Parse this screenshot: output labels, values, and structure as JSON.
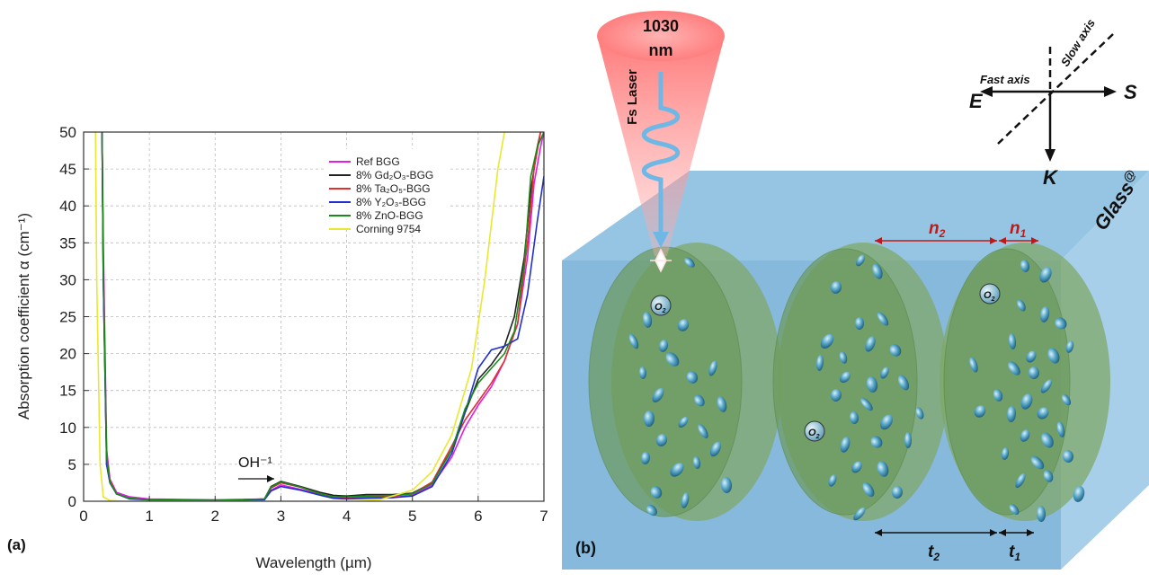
{
  "chart_data": {
    "type": "line",
    "panel_label": "(a)",
    "xlabel": "Wavelength (µm)",
    "ylabel": "Absorption coefficient α (cm⁻¹)",
    "xlim": [
      0,
      7
    ],
    "ylim": [
      0,
      50
    ],
    "xticks": [
      0,
      1,
      2,
      3,
      4,
      5,
      6,
      7
    ],
    "yticks": [
      0,
      5,
      10,
      15,
      20,
      25,
      30,
      35,
      40,
      45,
      50
    ],
    "grid": true,
    "legend_position": "top-right",
    "annotation": "OH⁻¹",
    "series": [
      {
        "name": "Ref BGG",
        "color": "#e020e0",
        "x": [
          0.28,
          0.3,
          0.35,
          0.4,
          0.5,
          0.7,
          1,
          2,
          2.75,
          2.85,
          3,
          3.3,
          3.6,
          3.8,
          4,
          4.3,
          4.7,
          5,
          5.3,
          5.6,
          5.8,
          6,
          6.2,
          6.4,
          6.6,
          6.75,
          6.85,
          6.95,
          7
        ],
        "y": [
          50,
          35,
          7,
          3,
          1.2,
          0.6,
          0.3,
          0.2,
          0.3,
          1.5,
          2.2,
          1.6,
          0.9,
          0.5,
          0.4,
          0.5,
          0.5,
          0.8,
          2.2,
          6,
          10,
          13,
          15.5,
          19,
          24,
          33,
          43,
          48,
          50
        ]
      },
      {
        "name": "8% Gd₂O₃-BGG",
        "color": "#222222",
        "x": [
          0.28,
          0.3,
          0.35,
          0.4,
          0.5,
          0.7,
          1,
          2,
          2.75,
          2.85,
          3,
          3.3,
          3.6,
          3.8,
          4,
          4.3,
          4.7,
          5,
          5.3,
          5.6,
          5.8,
          6,
          6.2,
          6.4,
          6.55,
          6.7,
          6.8,
          6.9,
          6.95
        ],
        "y": [
          50,
          30,
          5,
          2.5,
          1,
          0.4,
          0.2,
          0.1,
          0.3,
          2,
          2.7,
          2,
          1.2,
          0.8,
          0.7,
          0.9,
          0.9,
          1.1,
          2.5,
          7,
          12,
          16.5,
          18.5,
          21,
          25,
          33,
          42,
          48,
          50
        ]
      },
      {
        "name": "8% Ta₂O₅-BGG",
        "color": "#e03030",
        "x": [
          0.28,
          0.3,
          0.35,
          0.4,
          0.5,
          0.7,
          1,
          2,
          2.75,
          2.85,
          3,
          3.3,
          3.6,
          3.8,
          4,
          4.3,
          4.7,
          5,
          5.3,
          5.6,
          5.8,
          6,
          6.2,
          6.4,
          6.6,
          6.75,
          6.85,
          6.95
        ],
        "y": [
          50,
          32,
          6,
          2.8,
          1,
          0.4,
          0.2,
          0.1,
          0.3,
          1.8,
          2.5,
          1.9,
          1,
          0.6,
          0.5,
          0.6,
          0.7,
          1,
          2.6,
          7.5,
          11,
          13.5,
          16,
          19,
          24,
          35,
          45,
          50
        ]
      },
      {
        "name": "8% Y₂O₃-BGG",
        "color": "#2030d0",
        "x": [
          0.28,
          0.3,
          0.35,
          0.4,
          0.5,
          0.7,
          1,
          2,
          2.75,
          2.85,
          3,
          3.3,
          3.6,
          3.8,
          4,
          4.3,
          4.7,
          5,
          5.3,
          5.6,
          5.8,
          6,
          6.2,
          6.4,
          6.6,
          6.75,
          6.9,
          7
        ],
        "y": [
          50,
          30,
          5,
          2.5,
          1,
          0.3,
          0.2,
          0.1,
          0.2,
          1.4,
          2,
          1.5,
          0.8,
          0.4,
          0.3,
          0.4,
          0.5,
          0.7,
          2,
          6.5,
          12,
          18,
          20.5,
          21,
          22,
          28,
          38,
          44
        ]
      },
      {
        "name": "8% ZnO-BGG",
        "color": "#1a8a1a",
        "x": [
          0.28,
          0.3,
          0.35,
          0.4,
          0.5,
          0.7,
          1,
          2,
          2.75,
          2.85,
          3,
          3.3,
          3.6,
          3.8,
          4,
          4.3,
          4.7,
          5,
          5.3,
          5.6,
          5.8,
          6,
          6.2,
          6.4,
          6.55,
          6.7,
          6.8,
          6.9,
          7
        ],
        "y": [
          50,
          31,
          6,
          2.6,
          1,
          0.4,
          0.2,
          0.1,
          0.3,
          1.9,
          2.6,
          1.9,
          1,
          0.6,
          0.6,
          0.7,
          0.8,
          1,
          2.4,
          7,
          12.5,
          16,
          18,
          20,
          23,
          32,
          44,
          48,
          50
        ]
      },
      {
        "name": "Corning 9754",
        "color": "#e8e830",
        "x": [
          0.18,
          0.2,
          0.25,
          0.3,
          0.4,
          0.6,
          1,
          2,
          3,
          3.5,
          4,
          4.5,
          5,
          5.3,
          5.6,
          5.9,
          6.1,
          6.3,
          6.4
        ],
        "y": [
          50,
          30,
          5,
          0.6,
          0.1,
          0,
          0,
          0,
          0,
          0,
          0,
          0.2,
          1.5,
          4,
          9,
          18,
          30,
          45,
          50
        ]
      }
    ]
  },
  "diagram": {
    "panel_label": "(b)",
    "laser_wavelength_value": "1030",
    "laser_wavelength_unit": "nm",
    "laser_label": "Fs Laser",
    "glass_label": "Glass",
    "glass_sup": "@",
    "axes": {
      "fast": "Fast axis",
      "slow": "Slow axis",
      "E": "E",
      "S": "S",
      "K": "K"
    },
    "n2_label": "n",
    "n2_sub": "2",
    "n1_label": "n",
    "n1_sub": "1",
    "t2_label": "t",
    "t2_sub": "2",
    "t1_label": "t",
    "t1_sub": "1",
    "o2_label": "O",
    "o2_sub": "2"
  }
}
